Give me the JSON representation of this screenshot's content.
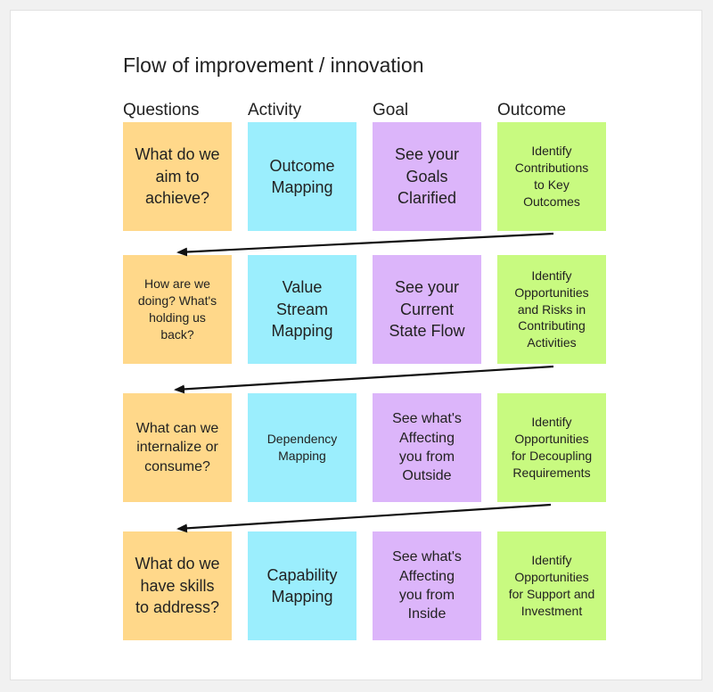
{
  "title": "Flow of improvement / innovation",
  "colors": {
    "questions": "#ffd88a",
    "activity": "#9beefd",
    "goal": "#dcb5fa",
    "outcome": "#c8fa80",
    "arrow": "#111111"
  },
  "headers": {
    "questions": "Questions",
    "activity": "Activity",
    "goal": "Goal",
    "outcome": "Outcome"
  },
  "rows": [
    {
      "question": "What do we\naim to\nachieve?",
      "activity": "Outcome\nMapping",
      "goal": "See your\nGoals\nClarified",
      "outcome": "Identify\nContributions\nto Key\nOutcomes"
    },
    {
      "question": "How are we\ndoing? What's\nholding us\nback?",
      "activity": "Value\nStream\nMapping",
      "goal": "See your\nCurrent\nState Flow",
      "outcome": "Identify\nOpportunities\nand Risks in\nContributing\nActivities"
    },
    {
      "question": "What can we\ninternalize or\nconsume?",
      "activity": "Dependency\nMapping",
      "goal": "See what's\nAffecting\nyou from\nOutside",
      "outcome": "Identify\nOpportunities\nfor Decoupling\nRequirements"
    },
    {
      "question": "What do we\nhave skills\nto address?",
      "activity": "Capability\nMapping",
      "goal": "See what's\nAffecting\nyou from\nInside",
      "outcome": "Identify\nOpportunities\nfor Support and\nInvestment"
    }
  ]
}
